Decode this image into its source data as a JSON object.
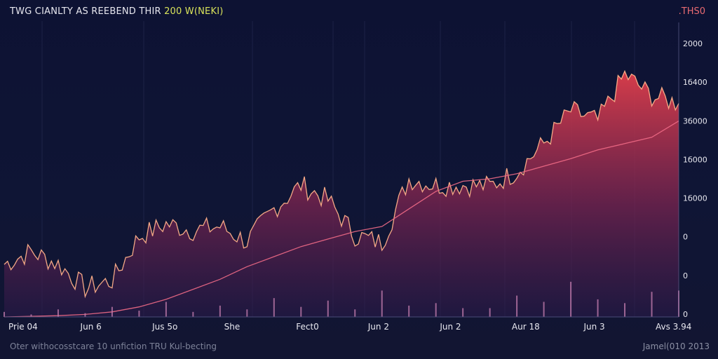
{
  "header": {
    "title": "TWG CIANLTY AS REEBEND THIR",
    "title_accent": "200 W(NEKI)",
    "corner_tag": ".THS0"
  },
  "footer": {
    "note": "Oter withocosstcare  10 unfiction TRU Kul-becting",
    "date": "Jamel(010  2013"
  },
  "colors": {
    "background": "#0d1233",
    "price_line": "#ffb08a",
    "area_top": "#e8404c",
    "area_bottom": "#2a1a4a",
    "trend_line": "#f06a86",
    "volume": "#c77fb0",
    "axis": "#6a6a9a"
  },
  "chart_data": {
    "type": "area",
    "title": "TWG CIANLTY AS REEBEND THIR 200 W(NEKI)",
    "xlabel": "",
    "ylabel": "",
    "grid": false,
    "ylim": [
      0,
      2300
    ],
    "y_tick_labels": [
      "2000",
      "1б400",
      "3б000",
      "1б000",
      "1б000",
      "0",
      "0",
      "0"
    ],
    "x_tick_labels": [
      "Prie 04",
      "Jun 6",
      "Jus 5o",
      "She",
      "Fect0",
      "Jun 2",
      "Jun 2",
      "Aur 18",
      "Jun 3",
      "Avs 3.94"
    ],
    "x": [
      0,
      4,
      8,
      12,
      16,
      20,
      24,
      28,
      32,
      36,
      40,
      44,
      48,
      52,
      56,
      60,
      64,
      68,
      72,
      76,
      80,
      84,
      88,
      92,
      96,
      100
    ],
    "series": [
      {
        "values": [
          420,
          520,
          420,
          230,
          290,
          640,
          740,
          690,
          720,
          600,
          860,
          1050,
          930,
          650,
          590,
          1100,
          1050,
          1050,
          1040,
          1160,
          1380,
          1640,
          1560,
          1930,
          1760,
          1700
        ]
      },
      {
        "values": [
          0,
          5,
          10,
          20,
          40,
          80,
          140,
          220,
          300,
          400,
          480,
          560,
          620,
          680,
          720,
          860,
          1000,
          1080,
          1100,
          1140,
          1200,
          1260,
          1330,
          1380,
          1430,
          1560
        ]
      },
      {
        "values": [
          40,
          20,
          60,
          30,
          80,
          50,
          120,
          40,
          90,
          60,
          150,
          80,
          130,
          60,
          210,
          90,
          110,
          70,
          70,
          170,
          120,
          280,
          140,
          110,
          200,
          210
        ]
      }
    ]
  }
}
